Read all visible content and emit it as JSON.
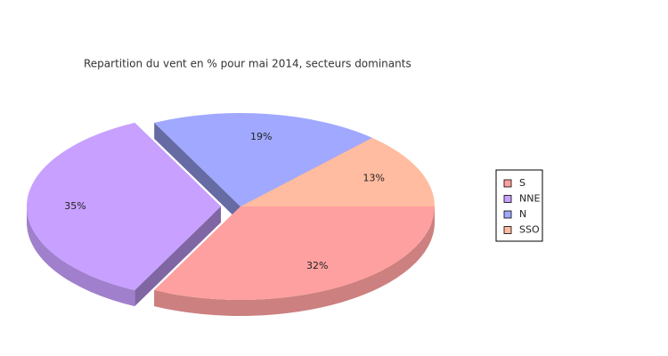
{
  "chart_data": {
    "type": "pie",
    "title": "Repartition du vent en % pour mai 2014, secteurs dominants",
    "categories": [
      "S",
      "NNE",
      "N",
      "SSO"
    ],
    "values": [
      32,
      35,
      19,
      13
    ],
    "value_labels": [
      "32%",
      "35%",
      "19%",
      "13%"
    ],
    "colors": [
      "#ffa0a0",
      "#c8a0ff",
      "#a0a8ff",
      "#ffbca0"
    ],
    "exploded": [
      false,
      true,
      false,
      false
    ],
    "legend": "right"
  }
}
